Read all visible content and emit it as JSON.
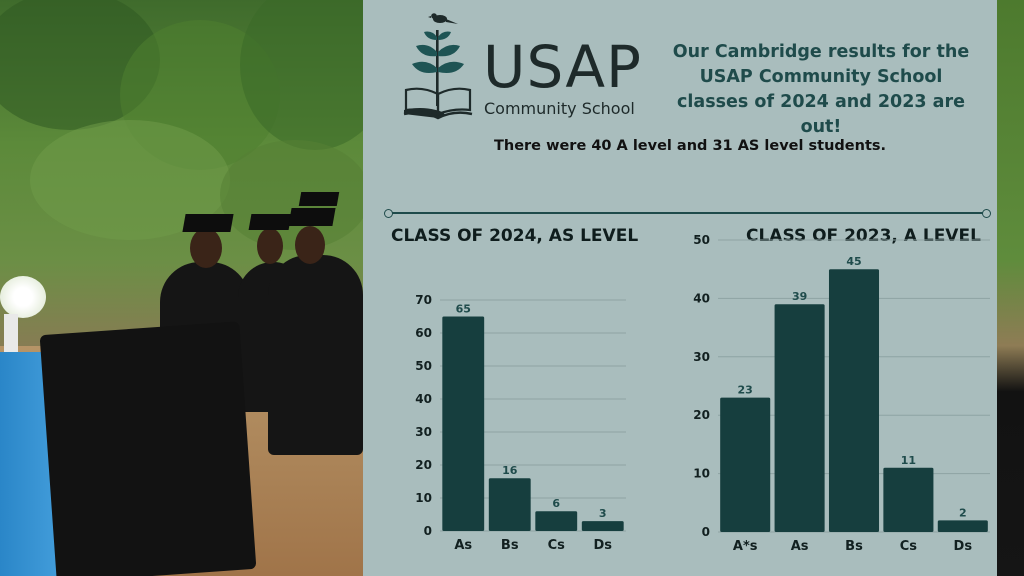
{
  "logo": {
    "name": "USAP",
    "subtitle": "Community School"
  },
  "headline": "Our Cambridge results for the USAP Community School classes of 2024 and 2023 are out!",
  "subline": "There were 40 A level and 31 AS level students.",
  "colors": {
    "panel": "#a9bdbd",
    "bar": "#163e3e",
    "headline": "#1f4b4b"
  },
  "chart_data": [
    {
      "type": "bar",
      "title": "CLASS OF 2024, AS LEVEL",
      "categories": [
        "As",
        "Bs",
        "Cs",
        "Ds"
      ],
      "values": [
        65,
        16,
        6,
        3
      ],
      "yticks": [
        0,
        10,
        20,
        30,
        40,
        50,
        60,
        70
      ],
      "ylim": [
        0,
        70
      ],
      "grid": true,
      "data_labels": true
    },
    {
      "type": "bar",
      "title": "CLASS OF 2023, A LEVEL",
      "categories": [
        "A*s",
        "As",
        "Bs",
        "Cs",
        "Ds"
      ],
      "values": [
        23,
        39,
        45,
        11,
        2
      ],
      "yticks": [
        0,
        10,
        20,
        30,
        40,
        50
      ],
      "ylim": [
        0,
        50
      ],
      "grid": true,
      "data_labels": true
    }
  ]
}
